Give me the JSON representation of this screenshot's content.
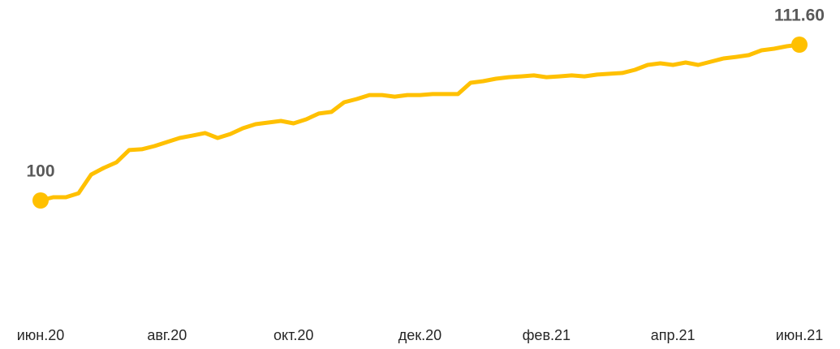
{
  "chart_data": {
    "type": "line",
    "categories": [
      "июн.20",
      null,
      null,
      null,
      null,
      null,
      null,
      null,
      null,
      null,
      "авг.20",
      null,
      null,
      null,
      null,
      null,
      null,
      null,
      null,
      null,
      "окт.20",
      null,
      null,
      null,
      null,
      null,
      null,
      null,
      null,
      null,
      "дек.20",
      null,
      null,
      null,
      null,
      null,
      null,
      null,
      null,
      null,
      "фев.21",
      null,
      null,
      null,
      null,
      null,
      null,
      null,
      null,
      null,
      "апр.21",
      null,
      null,
      null,
      null,
      null,
      null,
      null,
      null,
      null,
      "июн.21"
    ],
    "series": [
      {
        "color": "#FFC000",
        "values": [
          100.0,
          100.24,
          100.24,
          100.54,
          101.93,
          102.42,
          102.84,
          103.75,
          103.81,
          104.05,
          104.35,
          104.65,
          104.83,
          105.02,
          104.65,
          104.95,
          105.38,
          105.68,
          105.8,
          105.92,
          105.74,
          106.04,
          106.47,
          106.59,
          107.31,
          107.55,
          107.85,
          107.85,
          107.73,
          107.85,
          107.85,
          107.92,
          107.92,
          107.92,
          108.76,
          108.88,
          109.06,
          109.18,
          109.24,
          109.31,
          109.18,
          109.24,
          109.31,
          109.24,
          109.37,
          109.43,
          109.49,
          109.73,
          110.09,
          110.21,
          110.09,
          110.27,
          110.09,
          110.33,
          110.57,
          110.69,
          110.82,
          111.18,
          111.3,
          111.48,
          111.6
        ],
        "value_labels": [
          "100",
          null,
          null,
          null,
          null,
          null,
          null,
          null,
          null,
          null,
          null,
          null,
          null,
          null,
          null,
          null,
          null,
          null,
          null,
          null,
          null,
          null,
          null,
          null,
          null,
          null,
          null,
          null,
          null,
          null,
          null,
          null,
          null,
          null,
          null,
          null,
          null,
          null,
          null,
          null,
          null,
          null,
          null,
          null,
          null,
          null,
          null,
          null,
          null,
          null,
          null,
          null,
          null,
          null,
          null,
          null,
          null,
          null,
          null,
          null,
          "111.60"
        ]
      }
    ]
  }
}
